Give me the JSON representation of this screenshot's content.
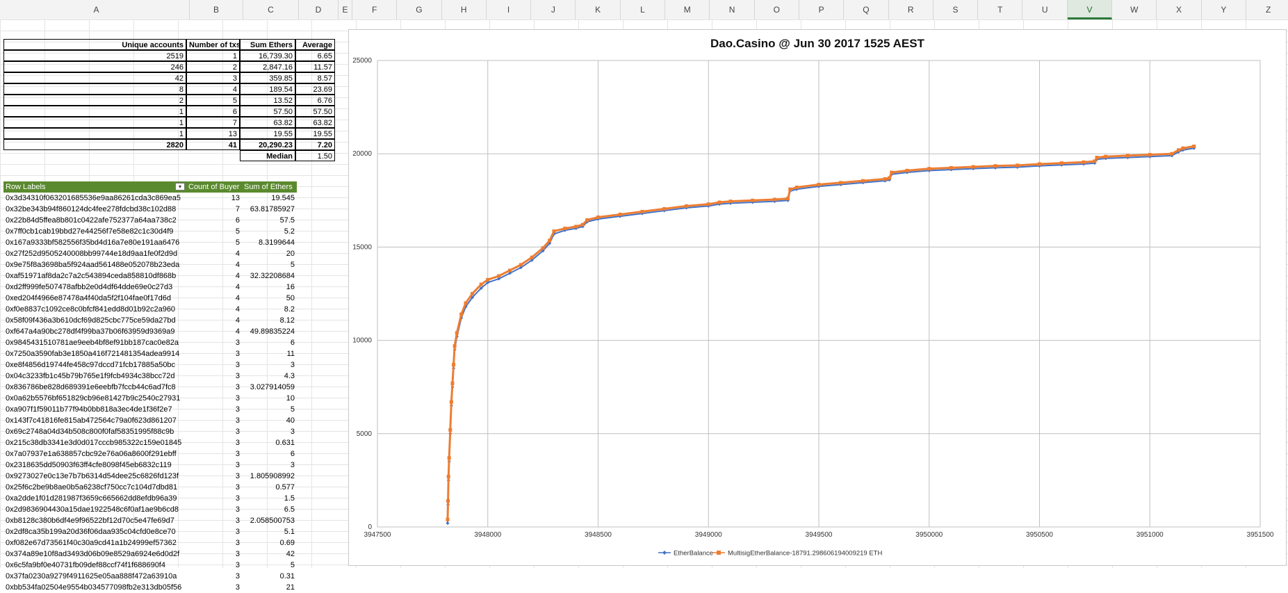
{
  "columns": [
    "A",
    "B",
    "C",
    "D",
    "E",
    "F",
    "G",
    "H",
    "I",
    "J",
    "K",
    "L",
    "M",
    "N",
    "O",
    "P",
    "Q",
    "R",
    "S",
    "T",
    "U",
    "V",
    "W",
    "X",
    "Y",
    "Z"
  ],
  "selected_column": "V",
  "summary": {
    "headers": [
      "Unique accounts",
      "Number of txs",
      "Sum Ethers",
      "Average"
    ],
    "rows": [
      [
        "2519",
        "1",
        "16,739.30",
        "6.65"
      ],
      [
        "246",
        "2",
        "2,847.16",
        "11.57"
      ],
      [
        "42",
        "3",
        "359.85",
        "8.57"
      ],
      [
        "8",
        "4",
        "189.54",
        "23.69"
      ],
      [
        "2",
        "5",
        "13.52",
        "6.76"
      ],
      [
        "1",
        "6",
        "57.50",
        "57.50"
      ],
      [
        "1",
        "7",
        "63.82",
        "63.82"
      ],
      [
        "1",
        "13",
        "19.55",
        "19.55"
      ]
    ],
    "totals": [
      "2820",
      "41",
      "20,290.23",
      "7.20"
    ],
    "median_label": "Median",
    "median_value": "1.50"
  },
  "pivot": {
    "headers": [
      "Row Labels",
      "Count of Buyer",
      "Sum of Ethers"
    ],
    "filter_icon": "filter-dropdown-icon",
    "rows": [
      [
        "0x3d34310f063201685536e9aa86261cda3c869ea5",
        "13",
        "19.545"
      ],
      [
        "0x32be343b94f860124dc4fee278fdcbd38c102d88",
        "7",
        "63.81785927"
      ],
      [
        "0x22b84d5ffea8b801c0422afe752377a64aa738c2",
        "6",
        "57.5"
      ],
      [
        "0x7ff0cb1cab19bbd27e44256f7e58e82c1c30d4f9",
        "5",
        "5.2"
      ],
      [
        "0x167a9333bf582556f35bd4d16a7e80e191aa6476",
        "5",
        "8.3199644"
      ],
      [
        "0x27f252d9505240008bb99744e18d9aa1fe0f2d9d",
        "4",
        "20"
      ],
      [
        "0x9e75f8a3698ba5f924aad561488e052078b23eda",
        "4",
        "5"
      ],
      [
        "0xaf51971af8da2c7a2c543894ceda858810df868b",
        "4",
        "32.32208684"
      ],
      [
        "0xd2ff999fe507478afbb2e0d4df64dde69e0c27d3",
        "4",
        "16"
      ],
      [
        "0xed204f4966e87478a4f40da5f2f104fae0f17d6d",
        "4",
        "50"
      ],
      [
        "0xf0e8837c1092ce8c0bfcf841edd8d01b92c2a960",
        "4",
        "8.2"
      ],
      [
        "0x58f09f436a3b610dcf69d825cbc775ce59da27bd",
        "4",
        "8.12"
      ],
      [
        "0xf647a4a90bc278df4f99ba37b06f63959d9369a9",
        "4",
        "49.89835224"
      ],
      [
        "0x9845431510781ae9eeb4bf8ef91bb187cac0e82a",
        "3",
        "6"
      ],
      [
        "0x7250a3590fab3e1850a416f721481354adea9914",
        "3",
        "11"
      ],
      [
        "0xe8f4856d19744fe458c97dccd71fcb17885a50bc",
        "3",
        "3"
      ],
      [
        "0x04c3233fb1c45b79b765e1f9fcb4934c38bcc72d",
        "3",
        "4.3"
      ],
      [
        "0x836786be828d689391e6eebfb7fccb44c6ad7fc8",
        "3",
        "3.027914059"
      ],
      [
        "0x0a62b5576bf651829cb96e81427b9c2540c27931",
        "3",
        "10"
      ],
      [
        "0xa907f1f59011b77f94b0bb818a3ec4de1f36f2e7",
        "3",
        "5"
      ],
      [
        "0x143f7c41816fe815ab472564c79a0f623d861207",
        "3",
        "40"
      ],
      [
        "0x69c2748a04d34b508c800f0faf58351995f88c9b",
        "3",
        "3"
      ],
      [
        "0x215c38db3341e3d0d017cccb985322c159e01845",
        "3",
        "0.631"
      ],
      [
        "0x7a07937e1a638857cbc92e76a06a8600f291ebff",
        "3",
        "6"
      ],
      [
        "0x2318635dd50903f63ff4cfe8098f45eb6832c119",
        "3",
        "3"
      ],
      [
        "0x9273027e0c13e7b7b6314d54dee25c6826fd123f",
        "3",
        "1.805908992"
      ],
      [
        "0x25f6c2be9b8ae0b5a6238cf750cc7c104d7dbd81",
        "3",
        "0.577"
      ],
      [
        "0xa2dde1f01d281987f3659c665662dd8efdb96a39",
        "3",
        "1.5"
      ],
      [
        "0x2d9836904430a15dae1922548c6f0af1ae9b6cd8",
        "3",
        "6.5"
      ],
      [
        "0xb8128c380b6df4e9f96522bf12d70c5e47fe69d7",
        "3",
        "2.058500753"
      ],
      [
        "0x2df8ca35b199a20d36f06daa935c04cfd0e8ce70",
        "3",
        "5.1"
      ],
      [
        "0xf082e67d73561f40c30a9cd41a1b24999ef57362",
        "3",
        "0.69"
      ],
      [
        "0x374a89e10f8ad3493d06b09e8529a6924e6d0d2f",
        "3",
        "42"
      ],
      [
        "0x6c5fa9bf0e40731fb09def88ccf74f1f688690f4",
        "3",
        "5"
      ],
      [
        "0x37fa0230a9279f4911625e05aa888f472a63910a",
        "3",
        "0.31"
      ],
      [
        "0xbb534fa02504e9554b034577098fb2e313db05f56",
        "3",
        "21"
      ]
    ]
  },
  "chart_data": {
    "type": "scatter",
    "title": "Dao.Casino @ Jun 30 2017 1525 AEST",
    "xlim": [
      3947500,
      3951500
    ],
    "ylim": [
      0,
      25000
    ],
    "xticks": [
      3947500,
      3948000,
      3948500,
      3949000,
      3949500,
      3950000,
      3950500,
      3951000,
      3951500
    ],
    "yticks": [
      0,
      5000,
      10000,
      15000,
      20000,
      25000
    ],
    "grid": true,
    "legend_position": "bottom",
    "series": [
      {
        "name": "EtherBalance",
        "color": "#4472c4",
        "marker": "diamond",
        "x": [
          3947818,
          3947820,
          3947822,
          3947825,
          3947830,
          3947835,
          3947840,
          3947845,
          3947850,
          3947860,
          3947880,
          3947900,
          3947930,
          3947970,
          3948000,
          3948050,
          3948100,
          3948150,
          3948200,
          3948250,
          3948280,
          3948300,
          3948350,
          3948400,
          3948430,
          3948450,
          3948500,
          3948600,
          3948700,
          3948800,
          3948900,
          3949000,
          3949050,
          3949100,
          3949200,
          3949300,
          3949360,
          3949370,
          3949400,
          3949500,
          3949600,
          3949700,
          3949800,
          3949820,
          3949830,
          3949900,
          3950000,
          3950100,
          3950200,
          3950300,
          3950400,
          3950500,
          3950600,
          3950700,
          3950750,
          3950760,
          3950800,
          3950900,
          3951000,
          3951100,
          3951130,
          3951150,
          3951200
        ],
        "y": [
          200,
          1200,
          2500,
          3500,
          5000,
          6500,
          7500,
          8500,
          9500,
          10200,
          11200,
          11800,
          12300,
          12800,
          13100,
          13300,
          13600,
          13900,
          14300,
          14800,
          15200,
          15700,
          15900,
          16000,
          16100,
          16350,
          16500,
          16650,
          16800,
          16950,
          17100,
          17200,
          17300,
          17350,
          17400,
          17450,
          17500,
          18000,
          18100,
          18250,
          18350,
          18450,
          18550,
          18600,
          18900,
          19000,
          19100,
          19150,
          19200,
          19250,
          19280,
          19350,
          19400,
          19450,
          19500,
          19700,
          19750,
          19800,
          19850,
          19900,
          20100,
          20200,
          20300
        ]
      },
      {
        "name": "MultisigEtherBalance-18791.298606194009219 ETH",
        "color": "#ed7d31",
        "marker": "square",
        "x": [
          3947818,
          3947820,
          3947822,
          3947825,
          3947830,
          3947835,
          3947840,
          3947845,
          3947850,
          3947860,
          3947880,
          3947900,
          3947930,
          3947970,
          3948000,
          3948050,
          3948100,
          3948150,
          3948200,
          3948250,
          3948280,
          3948300,
          3948350,
          3948400,
          3948430,
          3948450,
          3948500,
          3948600,
          3948700,
          3948800,
          3948900,
          3949000,
          3949050,
          3949100,
          3949200,
          3949300,
          3949360,
          3949370,
          3949400,
          3949500,
          3949600,
          3949700,
          3949800,
          3949820,
          3949830,
          3949900,
          3950000,
          3950100,
          3950200,
          3950300,
          3950400,
          3950500,
          3950600,
          3950700,
          3950750,
          3950760,
          3950800,
          3950900,
          3951000,
          3951100,
          3951130,
          3951150,
          3951200
        ],
        "y": [
          400,
          1400,
          2700,
          3700,
          5200,
          6700,
          7700,
          8700,
          9700,
          10400,
          11400,
          12000,
          12500,
          13000,
          13250,
          13450,
          13750,
          14050,
          14450,
          14950,
          15350,
          15850,
          16000,
          16100,
          16200,
          16450,
          16600,
          16750,
          16900,
          17050,
          17200,
          17300,
          17400,
          17450,
          17500,
          17550,
          17600,
          18100,
          18200,
          18350,
          18450,
          18550,
          18650,
          18700,
          19000,
          19100,
          19200,
          19250,
          19300,
          19350,
          19380,
          19450,
          19500,
          19550,
          19600,
          19800,
          19850,
          19900,
          19950,
          20000,
          20200,
          20300,
          20400
        ]
      }
    ]
  }
}
